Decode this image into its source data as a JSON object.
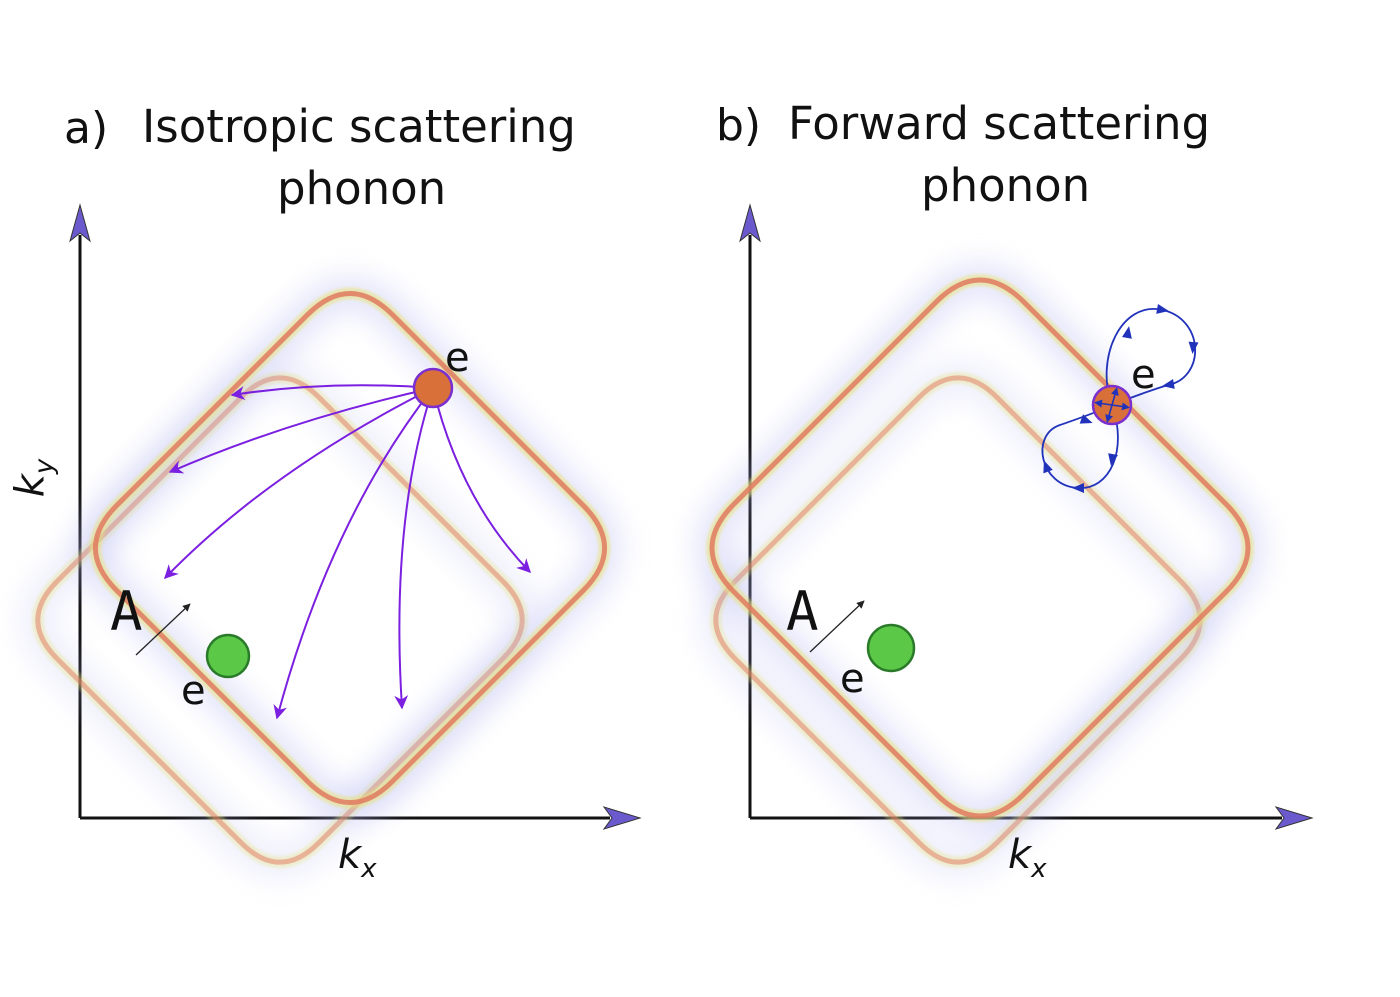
{
  "panels": [
    {
      "label": "a)",
      "title_line1": "Isotropic scattering",
      "title_line2": "phonon",
      "xlabel": "k",
      "xlabel_sub": "x",
      "ylabel": "k",
      "ylabel_sub": "y",
      "point_label_A": "A",
      "electron_label_initial": "e",
      "electron_label_scattered": "e",
      "scattering": "isotropic"
    },
    {
      "label": "b)",
      "title_line1": "Forward scattering",
      "title_line2": "phonon",
      "xlabel": "k",
      "xlabel_sub": "x",
      "point_label_A": "A",
      "electron_label_initial": "e",
      "electron_label_scattered": "e",
      "scattering": "forward"
    }
  ],
  "colors": {
    "axis": "#111111",
    "arrowhead": "#6a5acd",
    "scatter_arrow": "#7b1fe0",
    "forward_loop": "#2233bb",
    "electron_green": "#5cc848",
    "electron_orange": "#d9703a",
    "electron_orange_edge": "#7b2fd0",
    "band_red": "#e07a5f",
    "band_yellow": "#e8e27a",
    "band_glow": "#b0b4f0"
  }
}
